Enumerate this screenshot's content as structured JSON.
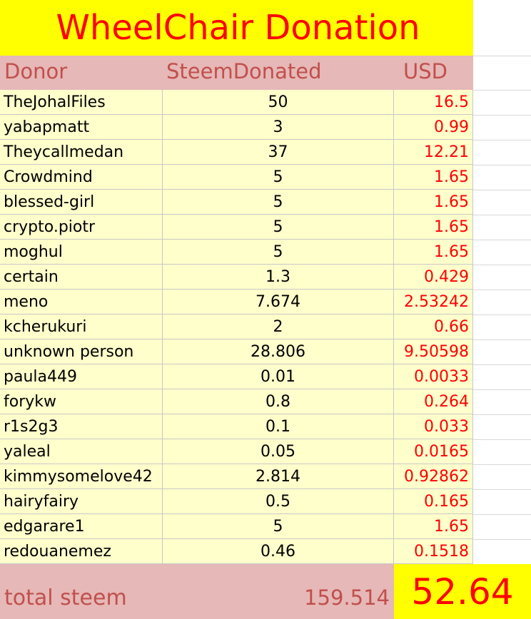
{
  "title": "WheelChair Donation",
  "headers": {
    "donor": "Donor",
    "steem": "SteemDonated",
    "usd": "USD"
  },
  "rows": [
    {
      "donor": "TheJohalFiles",
      "steem": "50",
      "usd": "16.5"
    },
    {
      "donor": "yabapmatt",
      "steem": "3",
      "usd": "0.99"
    },
    {
      "donor": "Theycallmedan",
      "steem": "37",
      "usd": "12.21"
    },
    {
      "donor": "Crowdmind",
      "steem": "5",
      "usd": "1.65"
    },
    {
      "donor": "blessed-girl",
      "steem": "5",
      "usd": "1.65"
    },
    {
      "donor": "crypto.piotr",
      "steem": "5",
      "usd": "1.65"
    },
    {
      "donor": "moghul",
      "steem": "5",
      "usd": "1.65"
    },
    {
      "donor": "certain",
      "steem": "1.3",
      "usd": "0.429"
    },
    {
      "donor": "meno",
      "steem": "7.674",
      "usd": "2.53242"
    },
    {
      "donor": "kcherukuri",
      "steem": "2",
      "usd": "0.66"
    },
    {
      "donor": "unknown person",
      "steem": "28.806",
      "usd": "9.50598"
    },
    {
      "donor": "paula449",
      "steem": "0.01",
      "usd": "0.0033"
    },
    {
      "donor": "forykw",
      "steem": "0.8",
      "usd": "0.264"
    },
    {
      "donor": "r1s2g3",
      "steem": "0.1",
      "usd": "0.033"
    },
    {
      "donor": "yaleal",
      "steem": "0.05",
      "usd": "0.0165"
    },
    {
      "donor": "kimmysomelove42",
      "steem": "2.814",
      "usd": "0.92862"
    },
    {
      "donor": "hairyfairy",
      "steem": "0.5",
      "usd": "0.165"
    },
    {
      "donor": "edgarare1",
      "steem": "5",
      "usd": "1.65"
    },
    {
      "donor": "redouanemez",
      "steem": "0.46",
      "usd": "0.1518"
    }
  ],
  "totals": {
    "label": "total steem",
    "steem": "159.514",
    "usd": "52.64"
  },
  "colors": {
    "title_bg": "#ffff00",
    "title_text": "#ff0000",
    "header_bg": "#e6b8b7",
    "header_text": "#c0504d",
    "row_bg": "#ffffcc",
    "usd_text": "#ff0000"
  }
}
